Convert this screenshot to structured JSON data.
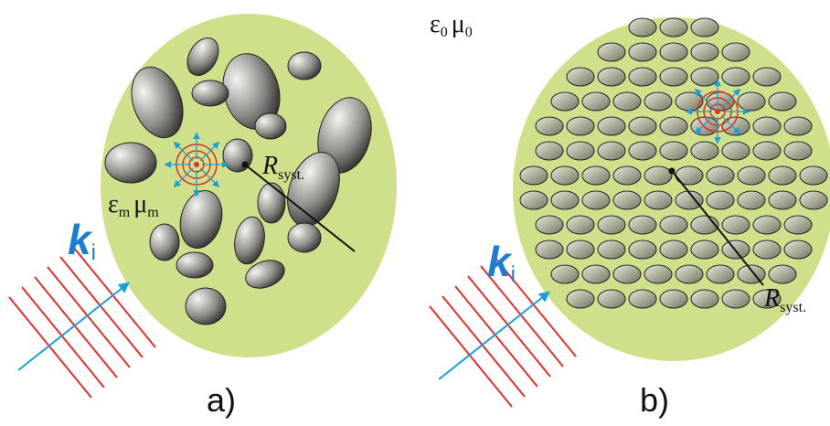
{
  "outer_medium": {
    "eps": "ε",
    "eps_sub": "0",
    "mu": "μ",
    "mu_sub": "0"
  },
  "panels": [
    {
      "label": "a)",
      "medium": {
        "eps": "ε",
        "eps_sub": "m",
        "mu": "μ",
        "mu_sub": "m"
      },
      "radius": {
        "symbol": "R",
        "sub": "syst."
      },
      "wave": {
        "symbol": "k",
        "sub": "i"
      }
    },
    {
      "label": "b)",
      "radius": {
        "symbol": "R",
        "sub": "syst."
      },
      "wave": {
        "symbol": "k",
        "sub": "i"
      }
    }
  ]
}
